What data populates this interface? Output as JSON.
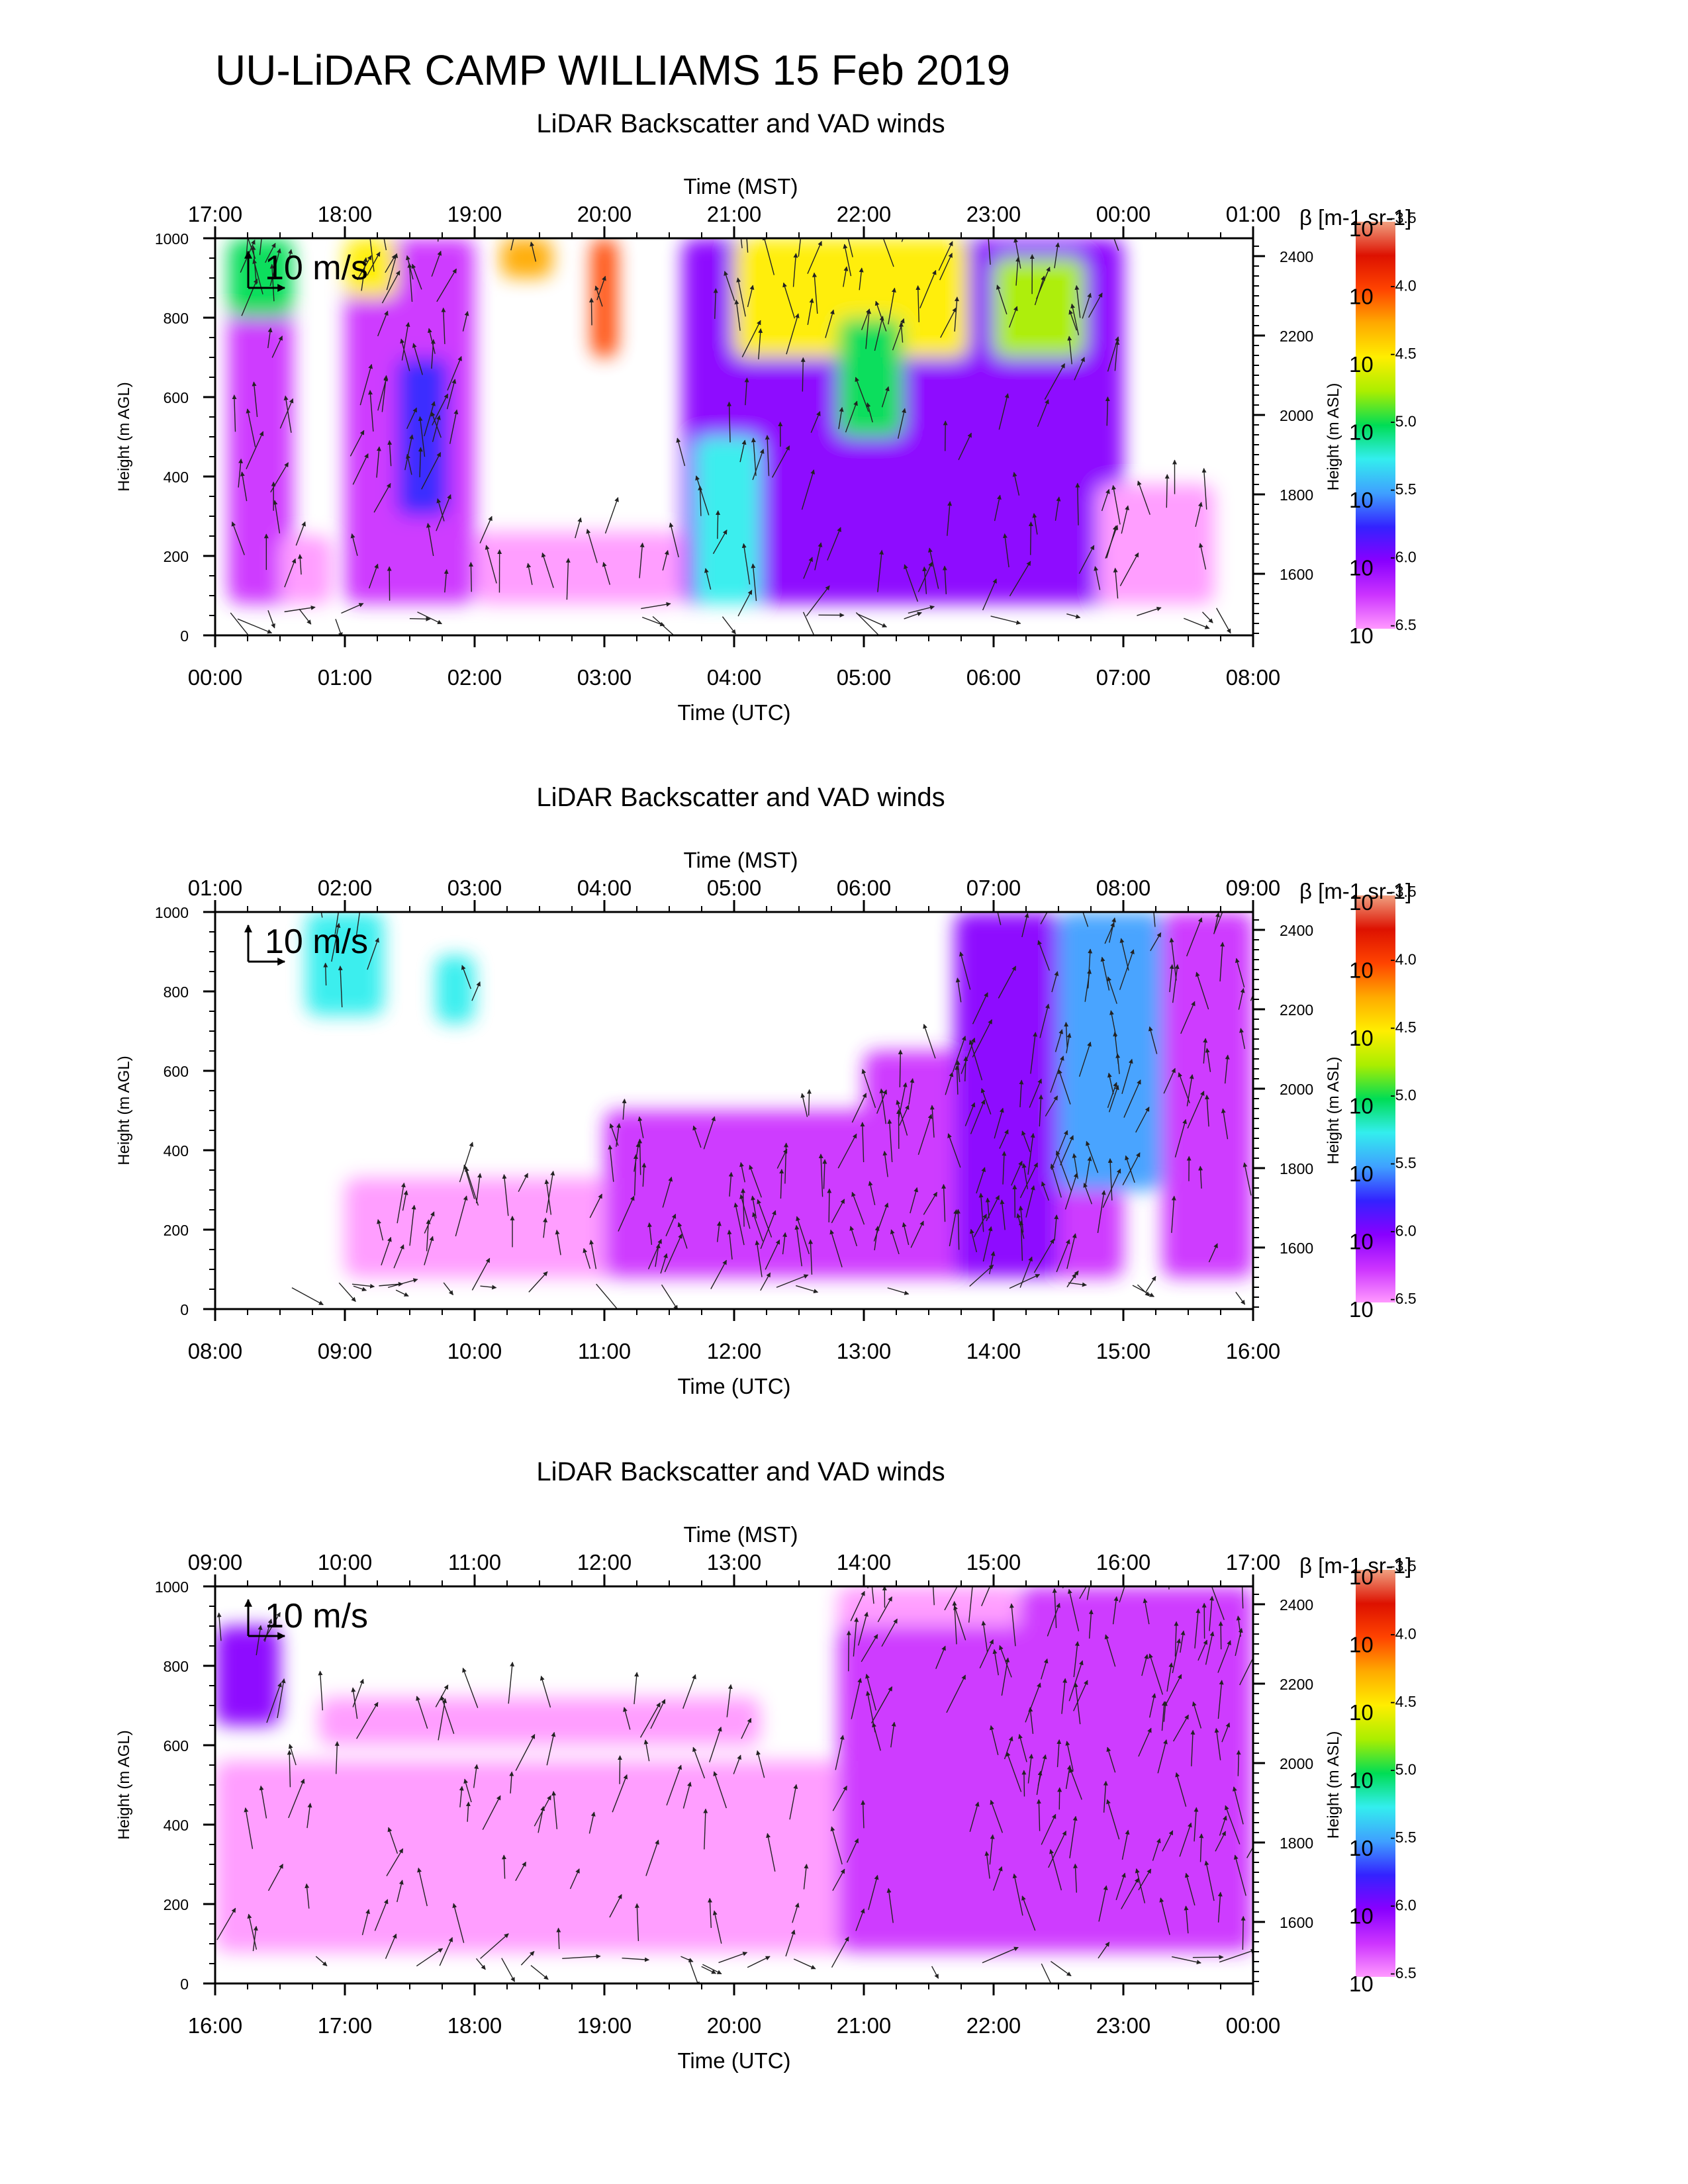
{
  "title": "UU-LiDAR CAMP WILLIAMS 15 Feb 2019",
  "colors": {
    "colorbar": [
      "#ff99ff",
      "#cc33ff",
      "#8800ff",
      "#3322ff",
      "#3fa0ff",
      "#33eeee",
      "#00dd55",
      "#aaee00",
      "#ffee00",
      "#ffaa00",
      "#ff4400",
      "#dd1100",
      "#f0a080"
    ],
    "arrow": "#222222",
    "axis": "#000000"
  },
  "chart_data": [
    {
      "type": "heatmap",
      "subtitle": "LiDAR Backscatter and VAD winds",
      "xlabel": "Time (UTC)",
      "xlabel_top": "Time (MST)",
      "ylabel": "Height (m AGL)",
      "ylabel_right": "Height (m ASL)",
      "colorbar_label": "β [m-1 sr-1]",
      "colorbar_ticks": [
        "-3.5",
        "-4.0",
        "-4.5",
        "-5.0",
        "-5.5",
        "-6.0",
        "-6.5"
      ],
      "colorbar_base": "10",
      "wind_scale_label": "10 m/s",
      "x_ticks_bottom": [
        "00:00",
        "01:00",
        "02:00",
        "03:00",
        "04:00",
        "05:00",
        "06:00",
        "07:00",
        "08:00"
      ],
      "x_ticks_top": [
        "17:00",
        "18:00",
        "19:00",
        "20:00",
        "21:00",
        "22:00",
        "23:00",
        "00:00",
        "01:00"
      ],
      "y_ticks": [
        "0",
        "200",
        "400",
        "600",
        "800",
        "1000"
      ],
      "y_ticks_right": [
        "1600",
        "1800",
        "2000",
        "2200",
        "2400"
      ],
      "xlim_utc": [
        "00:00",
        "08:00"
      ],
      "ylim_agl": [
        0,
        1000
      ],
      "ylim_asl": [
        1445,
        2445
      ],
      "backscatter_regions": [
        {
          "x": [
            0.1,
            0.6
          ],
          "y": [
            80,
            1000
          ],
          "log10_beta": -6.3
        },
        {
          "x": [
            0.1,
            0.6
          ],
          "y": [
            800,
            1000
          ],
          "log10_beta": -5.0
        },
        {
          "x": [
            0.5,
            0.9
          ],
          "y": [
            80,
            250
          ],
          "log10_beta": -6.5
        },
        {
          "x": [
            1.0,
            2.0
          ],
          "y": [
            80,
            1000
          ],
          "log10_beta": -6.2
        },
        {
          "x": [
            1.0,
            1.4
          ],
          "y": [
            850,
            1000
          ],
          "log10_beta": -4.5
        },
        {
          "x": [
            1.4,
            1.8
          ],
          "y": [
            300,
            700
          ],
          "log10_beta": -5.7
        },
        {
          "x": [
            2.0,
            3.6
          ],
          "y": [
            80,
            260
          ],
          "log10_beta": -6.5
        },
        {
          "x": [
            2.2,
            2.6
          ],
          "y": [
            900,
            1000
          ],
          "log10_beta": -4.3
        },
        {
          "x": [
            2.9,
            3.1
          ],
          "y": [
            700,
            1000
          ],
          "log10_beta": -4.0
        },
        {
          "x": [
            3.6,
            7.0
          ],
          "y": [
            80,
            1000
          ],
          "log10_beta": -6.1
        },
        {
          "x": [
            3.7,
            4.2
          ],
          "y": [
            80,
            500
          ],
          "log10_beta": -5.3
        },
        {
          "x": [
            4.0,
            5.8
          ],
          "y": [
            700,
            1000
          ],
          "log10_beta": -4.6
        },
        {
          "x": [
            4.8,
            5.3
          ],
          "y": [
            500,
            800
          ],
          "log10_beta": -5.0
        },
        {
          "x": [
            6.0,
            6.7
          ],
          "y": [
            700,
            950
          ],
          "log10_beta": -4.8
        },
        {
          "x": [
            6.8,
            7.7
          ],
          "y": [
            80,
            380
          ],
          "log10_beta": -6.5
        }
      ],
      "wind_scale_ms": 10
    },
    {
      "type": "heatmap",
      "subtitle": "LiDAR Backscatter and VAD winds",
      "xlabel": "Time (UTC)",
      "xlabel_top": "Time (MST)",
      "ylabel": "Height (m AGL)",
      "ylabel_right": "Height (m ASL)",
      "colorbar_label": "β [m-1 sr-1]",
      "colorbar_ticks": [
        "-3.5",
        "-4.0",
        "-4.5",
        "-5.0",
        "-5.5",
        "-6.0",
        "-6.5"
      ],
      "colorbar_base": "10",
      "wind_scale_label": "10 m/s",
      "x_ticks_bottom": [
        "08:00",
        "09:00",
        "10:00",
        "11:00",
        "12:00",
        "13:00",
        "14:00",
        "15:00",
        "16:00"
      ],
      "x_ticks_top": [
        "01:00",
        "02:00",
        "03:00",
        "04:00",
        "05:00",
        "06:00",
        "07:00",
        "08:00",
        "09:00"
      ],
      "y_ticks": [
        "0",
        "200",
        "400",
        "600",
        "800",
        "1000"
      ],
      "y_ticks_right": [
        "1600",
        "1800",
        "2000",
        "2200",
        "2400"
      ],
      "xlim_utc": [
        "08:00",
        "16:00"
      ],
      "ylim_agl": [
        0,
        1000
      ],
      "ylim_asl": [
        1445,
        2445
      ],
      "backscatter_regions": [
        {
          "x": [
            0.7,
            1.3
          ],
          "y": [
            740,
            1000
          ],
          "log10_beta": -5.3
        },
        {
          "x": [
            1.7,
            2.0
          ],
          "y": [
            720,
            890
          ],
          "log10_beta": -5.2
        },
        {
          "x": [
            1.0,
            4.5
          ],
          "y": [
            80,
            330
          ],
          "log10_beta": -6.4
        },
        {
          "x": [
            3.0,
            5.5
          ],
          "y": [
            80,
            500
          ],
          "log10_beta": -6.3
        },
        {
          "x": [
            5.0,
            7.0
          ],
          "y": [
            80,
            650
          ],
          "log10_beta": -6.2
        },
        {
          "x": [
            5.7,
            6.5
          ],
          "y": [
            80,
            1000
          ],
          "log10_beta": -6.0
        },
        {
          "x": [
            6.5,
            7.3
          ],
          "y": [
            300,
            1000
          ],
          "log10_beta": -5.5
        },
        {
          "x": [
            7.3,
            8.0
          ],
          "y": [
            80,
            1000
          ],
          "log10_beta": -6.3
        }
      ],
      "wind_scale_ms": 10
    },
    {
      "type": "heatmap",
      "subtitle": "LiDAR Backscatter and VAD winds",
      "xlabel": "Time (UTC)",
      "xlabel_top": "Time (MST)",
      "ylabel": "Height (m AGL)",
      "ylabel_right": "Height (m ASL)",
      "colorbar_label": "β [m-1 sr-1]",
      "colorbar_ticks": [
        "-3.5",
        "-4.0",
        "-4.5",
        "-5.0",
        "-5.5",
        "-6.0",
        "-6.5"
      ],
      "colorbar_base": "10",
      "wind_scale_label": "10 m/s",
      "x_ticks_bottom": [
        "16:00",
        "17:00",
        "18:00",
        "19:00",
        "20:00",
        "21:00",
        "22:00",
        "23:00",
        "00:00"
      ],
      "x_ticks_top": [
        "09:00",
        "10:00",
        "11:00",
        "12:00",
        "13:00",
        "14:00",
        "15:00",
        "16:00",
        "17:00"
      ],
      "y_ticks": [
        "0",
        "200",
        "400",
        "600",
        "800",
        "1000"
      ],
      "y_ticks_right": [
        "1600",
        "1800",
        "2000",
        "2200",
        "2400"
      ],
      "xlim_utc": [
        "16:00",
        "00:00"
      ],
      "ylim_agl": [
        0,
        1000
      ],
      "ylim_asl": [
        1445,
        2445
      ],
      "backscatter_regions": [
        {
          "x": [
            0.0,
            0.5
          ],
          "y": [
            650,
            900
          ],
          "log10_beta": -6.0
        },
        {
          "x": [
            0.0,
            5.0
          ],
          "y": [
            80,
            560
          ],
          "log10_beta": -6.4
        },
        {
          "x": [
            0.8,
            4.2
          ],
          "y": [
            600,
            720
          ],
          "log10_beta": -6.6
        },
        {
          "x": [
            4.8,
            6.2
          ],
          "y": [
            700,
            1000
          ],
          "log10_beta": -6.6
        },
        {
          "x": [
            4.8,
            8.0
          ],
          "y": [
            80,
            900
          ],
          "log10_beta": -6.3
        },
        {
          "x": [
            6.2,
            8.0
          ],
          "y": [
            80,
            1000
          ],
          "log10_beta": -6.3
        }
      ],
      "wind_scale_ms": 10
    }
  ]
}
